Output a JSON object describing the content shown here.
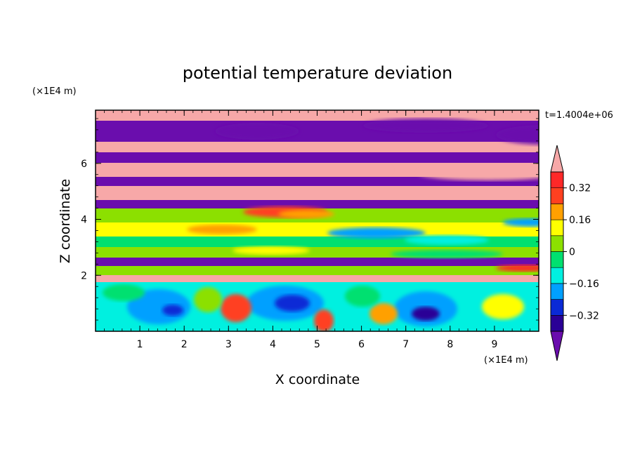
{
  "chart_data": {
    "type": "heatmap",
    "title": "potential temperature deviation",
    "xlabel": "X coordinate",
    "ylabel": "Z coordinate",
    "x_unit": "(×1E4 m)",
    "y_unit": "(×1E4 m)",
    "time_label": "t=1.4004e+06",
    "xlim": [
      0,
      10
    ],
    "ylim": [
      0,
      7.9
    ],
    "x_ticks": [
      1,
      2,
      3,
      4,
      5,
      6,
      7,
      8,
      9
    ],
    "y_ticks": [
      2,
      4,
      6
    ],
    "colorbar": {
      "levels": [
        -0.4,
        -0.32,
        -0.24,
        -0.16,
        -0.08,
        0,
        0.08,
        0.16,
        0.24,
        0.32,
        0.4
      ],
      "tick_labels": [
        "0.32",
        "0.16",
        "0",
        "−0.16",
        "−0.32"
      ],
      "tick_values": [
        0.32,
        0.16,
        0,
        -0.16,
        -0.32
      ],
      "colors": [
        "#6a0dad",
        "#2a0096",
        "#0a2ad6",
        "#00a0ff",
        "#00f0e0",
        "#00e070",
        "#8ce000",
        "#ffff00",
        "#ffa000",
        "#ff4020",
        "#ff2828",
        "#f7a8a8"
      ],
      "extend": "both"
    }
  }
}
